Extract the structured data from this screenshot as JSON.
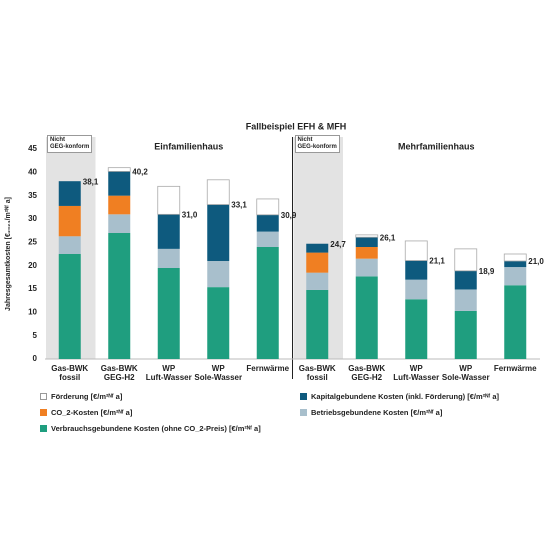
{
  "chart_data": {
    "type": "stacked-bar",
    "title": "Fallbeispiel EFH & MFH",
    "y_label": "Jahresgesamtkosten [€₂₀₂₄/m²ᴺᶠ a]",
    "groups": [
      {
        "name": "Einfamilienhaus",
        "note": "Nicht\nGEG-konform"
      },
      {
        "name": "Mehrfamilienhaus",
        "note": "Nicht\nGEG-konform"
      }
    ],
    "categories": [
      "Gas-BWK\nfossil",
      "Gas-BWK\nGEG-H2",
      "WP\nLuft-Wasser",
      "WP\nSole-Wasser",
      "Fernwärme",
      "Gas-BWK\nfossil",
      "Gas-BWK\nGEG-H2",
      "WP\nLuft-Wasser",
      "WP\nSole-Wasser",
      "Fernwärme"
    ],
    "series": [
      {
        "name": "Förderung [€/m²ᴺᶠ a]",
        "color": "#ffffff",
        "values": [
          0,
          0.8,
          6.0,
          5.3,
          3.4,
          0,
          0.5,
          4.2,
          4.7,
          1.5
        ]
      },
      {
        "name": "Kapitalgebundene Kosten (inkl. Förderung) [€/m²ᴺᶠ a]",
        "color": "#0e5a7e",
        "values": [
          5.3,
          5.2,
          7.4,
          12.1,
          3.6,
          1.9,
          2.1,
          4.1,
          4.0,
          1.3
        ]
      },
      {
        "name": "CO_2-Kosten [€/m²ᴺᶠ a]",
        "color": "#f07f22",
        "values": [
          6.5,
          4.0,
          0,
          0,
          0,
          4.3,
          2.5,
          0,
          0,
          0
        ]
      },
      {
        "name": "Betriebsgebundene Kosten  [€/m²ᴺᶠ a]",
        "color": "#a8bfcc",
        "values": [
          3.8,
          4.0,
          4.1,
          5.6,
          3.3,
          3.7,
          3.8,
          4.2,
          4.6,
          3.9
        ]
      },
      {
        "name": "Verbrauchsgebundene Kosten (ohne CO_2-Preis) [€/m²ᴺᶠ a]",
        "color": "#1f9e7f",
        "values": [
          22.5,
          27.0,
          19.5,
          15.4,
          24.0,
          14.8,
          17.7,
          12.8,
          10.3,
          15.8
        ]
      }
    ],
    "totals": {
      "values": [
        38.1,
        40.2,
        31.0,
        33.1,
        30.9,
        24.7,
        26.1,
        21.1,
        18.9,
        21.0
      ],
      "value_labels": [
        "38,1",
        "40,2",
        "31,0",
        "33,1",
        "30,9",
        "24,7",
        "26,1",
        "21,1",
        "18,9",
        "21,0"
      ]
    },
    "ylim": [
      0,
      45
    ],
    "yticks": [
      0,
      5,
      10,
      15,
      20,
      25,
      30,
      35,
      40,
      45
    ]
  }
}
